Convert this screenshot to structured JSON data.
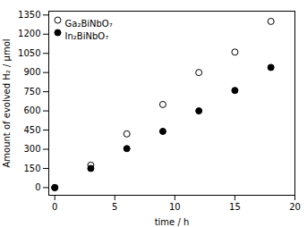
{
  "chart_data": {
    "type": "scatter",
    "xlabel": "time / h",
    "ylabel": "Amount of evolved H₂ / μmol",
    "x": [
      0,
      3,
      6,
      9,
      12,
      15,
      18
    ],
    "series": [
      {
        "name": "Ga₂BiNbO₇",
        "color": "#000000",
        "marker": "open_circle",
        "values": [
          0,
          175,
          420,
          650,
          900,
          1060,
          1300
        ]
      },
      {
        "name": "In₂BiNbO₇",
        "color": "#000000",
        "marker": "filled_circle",
        "values": [
          0,
          150,
          305,
          440,
          600,
          760,
          940
        ]
      }
    ],
    "xlim": [
      -0.5,
      20
    ],
    "ylim": [
      -60,
      1380
    ],
    "xticks": [
      0,
      5,
      10,
      15,
      20
    ],
    "yticks": [
      0,
      150,
      300,
      450,
      600,
      750,
      900,
      1050,
      1200,
      1350
    ],
    "legend": "upper left"
  }
}
